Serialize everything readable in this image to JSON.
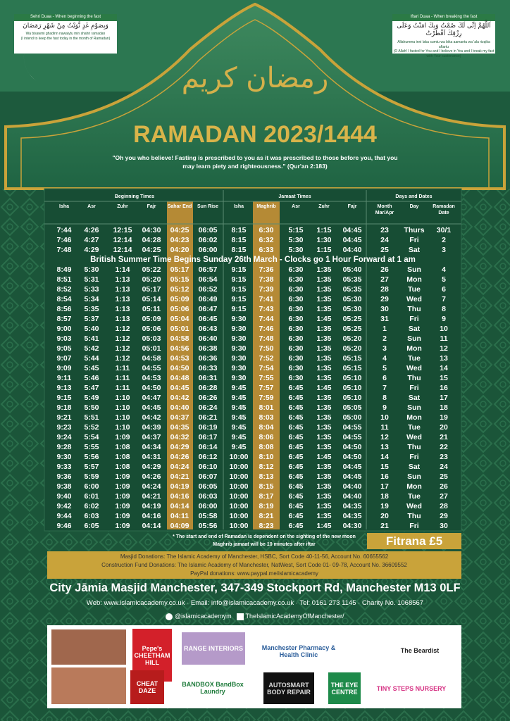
{
  "duas": [
    {
      "title": "Sehri Duaa - When beginning the fast",
      "arabic": "وَبِصَوْمِ غَدٍ نَّوَيْتُ مِنْ شَهْرِ رَمَضَانَ",
      "transliteration": "Wa bisawmi ghadinn nawaiytu min shahri ramadan",
      "translation": "(I intend to keep the fast today in the month of Ramadan)"
    },
    {
      "title": "Iftari Duaa - When breaking the fast",
      "arabic": "اَللَّهُمَّ اِنِّى لَكَ صُمْتُ وَبِكَ امَنْتُ وَعَلَى رِزْقِكَ اَفْطَرْتُ",
      "transliteration": "Allahumma inni laka sumtu wa bika aamantu wa 'ala rizqika aftartu",
      "translation": "(O Allah! I fasted for You and I believe in You and I break my fast with Your sustenance)"
    }
  ],
  "calligraphy": "رمضان كريم",
  "header": {
    "title": "RAMADAN 2023/1444",
    "quote": "\"Oh you who believe! Fasting is prescribed to you as it was prescribed to those before you, that you may learn piety and righteousness.\" (Qur'an 2:183)"
  },
  "table": {
    "groups": [
      "Beginning Times",
      "Jamaat Times",
      "Days and Dates"
    ],
    "columns": [
      "Isha",
      "Asr",
      "Zuhr",
      "Fajr",
      "Sahar End",
      "Sun Rise",
      "Isha",
      "Maghrib",
      "Asr",
      "Zuhr",
      "Fajr",
      "Month Mar/Apr",
      "Day",
      "Ramadan Date"
    ],
    "notice": "British Summer Time Begins Sunday 26th March - Clocks go 1 Hour Forward at 1 am",
    "rows": [
      [
        "7:44",
        "4:26",
        "12:15",
        "04:30",
        "04:25",
        "06:05",
        "8:15",
        "6:30",
        "5:15",
        "1:15",
        "04:45",
        "23",
        "Thurs",
        "30/1"
      ],
      [
        "7:46",
        "4:27",
        "12:14",
        "04:28",
        "04:23",
        "06:02",
        "8:15",
        "6:32",
        "5:30",
        "1:30",
        "04:45",
        "24",
        "Fri",
        "2"
      ],
      [
        "7:48",
        "4:29",
        "12:14",
        "04:25",
        "04:20",
        "06:00",
        "8:15",
        "6:33",
        "5:30",
        "1:15",
        "04:40",
        "25",
        "Sat",
        "3"
      ],
      [
        "8:49",
        "5:30",
        "1:14",
        "05:22",
        "05:17",
        "06:57",
        "9:15",
        "7:36",
        "6:30",
        "1:35",
        "05:40",
        "26",
        "Sun",
        "4"
      ],
      [
        "8:51",
        "5:31",
        "1:13",
        "05:20",
        "05:15",
        "06:54",
        "9:15",
        "7:38",
        "6:30",
        "1:35",
        "05:35",
        "27",
        "Mon",
        "5"
      ],
      [
        "8:52",
        "5:33",
        "1:13",
        "05:17",
        "05:12",
        "06:52",
        "9:15",
        "7:39",
        "6:30",
        "1:35",
        "05:35",
        "28",
        "Tue",
        "6"
      ],
      [
        "8:54",
        "5:34",
        "1:13",
        "05:14",
        "05:09",
        "06:49",
        "9:15",
        "7:41",
        "6:30",
        "1:35",
        "05:30",
        "29",
        "Wed",
        "7"
      ],
      [
        "8:56",
        "5:35",
        "1:13",
        "05:11",
        "05:06",
        "06:47",
        "9:15",
        "7:43",
        "6:30",
        "1:35",
        "05:30",
        "30",
        "Thu",
        "8"
      ],
      [
        "8:57",
        "5:37",
        "1:13",
        "05:09",
        "05:04",
        "06:45",
        "9:30",
        "7:44",
        "6:30",
        "1:45",
        "05:25",
        "31",
        "Fri",
        "9"
      ],
      [
        "9:00",
        "5:40",
        "1:12",
        "05:06",
        "05:01",
        "06:43",
        "9:30",
        "7:46",
        "6:30",
        "1:35",
        "05:25",
        "1",
        "Sat",
        "10"
      ],
      [
        "9:03",
        "5:41",
        "1:12",
        "05:03",
        "04:58",
        "06:40",
        "9:30",
        "7:48",
        "6:30",
        "1:35",
        "05:20",
        "2",
        "Sun",
        "11"
      ],
      [
        "9:05",
        "5:42",
        "1:12",
        "05:01",
        "04:56",
        "06:38",
        "9:30",
        "7:50",
        "6:30",
        "1:35",
        "05:20",
        "3",
        "Mon",
        "12"
      ],
      [
        "9:07",
        "5:44",
        "1:12",
        "04:58",
        "04:53",
        "06:36",
        "9:30",
        "7:52",
        "6:30",
        "1:35",
        "05:15",
        "4",
        "Tue",
        "13"
      ],
      [
        "9:09",
        "5:45",
        "1:11",
        "04:55",
        "04:50",
        "06:33",
        "9:30",
        "7:54",
        "6:30",
        "1:35",
        "05:15",
        "5",
        "Wed",
        "14"
      ],
      [
        "9:11",
        "5:46",
        "1:11",
        "04:53",
        "04:48",
        "06:31",
        "9:30",
        "7:55",
        "6:30",
        "1:35",
        "05:10",
        "6",
        "Thu",
        "15"
      ],
      [
        "9:13",
        "5:47",
        "1:11",
        "04:50",
        "04:45",
        "06:28",
        "9:45",
        "7:57",
        "6:45",
        "1:45",
        "05:10",
        "7",
        "Fri",
        "16"
      ],
      [
        "9:15",
        "5:49",
        "1:10",
        "04:47",
        "04:42",
        "06:26",
        "9:45",
        "7:59",
        "6:45",
        "1:35",
        "05:10",
        "8",
        "Sat",
        "17"
      ],
      [
        "9:18",
        "5:50",
        "1:10",
        "04:45",
        "04:40",
        "06:24",
        "9:45",
        "8:01",
        "6:45",
        "1:35",
        "05:05",
        "9",
        "Sun",
        "18"
      ],
      [
        "9:21",
        "5:51",
        "1:10",
        "04:42",
        "04:37",
        "06:21",
        "9:45",
        "8:03",
        "6:45",
        "1:35",
        "05:00",
        "10",
        "Mon",
        "19"
      ],
      [
        "9:23",
        "5:52",
        "1:10",
        "04:39",
        "04:35",
        "06:19",
        "9:45",
        "8:04",
        "6:45",
        "1:35",
        "04:55",
        "11",
        "Tue",
        "20"
      ],
      [
        "9:24",
        "5:54",
        "1:09",
        "04:37",
        "04:32",
        "06:17",
        "9:45",
        "8:06",
        "6:45",
        "1:35",
        "04:55",
        "12",
        "Wed",
        "21"
      ],
      [
        "9:28",
        "5:55",
        "1:08",
        "04:34",
        "04:29",
        "06:14",
        "9:45",
        "8:08",
        "6:45",
        "1:35",
        "04:50",
        "13",
        "Thu",
        "22"
      ],
      [
        "9:30",
        "5:56",
        "1:08",
        "04:31",
        "04:26",
        "06:12",
        "10:00",
        "8:10",
        "6:45",
        "1:45",
        "04:50",
        "14",
        "Fri",
        "23"
      ],
      [
        "9:33",
        "5:57",
        "1:08",
        "04:29",
        "04:24",
        "06:10",
        "10:00",
        "8:12",
        "6:45",
        "1:35",
        "04:45",
        "15",
        "Sat",
        "24"
      ],
      [
        "9:36",
        "5:59",
        "1:09",
        "04:26",
        "04:21",
        "06:07",
        "10:00",
        "8:13",
        "6:45",
        "1:35",
        "04:45",
        "16",
        "Sun",
        "25"
      ],
      [
        "9:38",
        "6:00",
        "1:09",
        "04:24",
        "04:19",
        "06:05",
        "10:00",
        "8:15",
        "6:45",
        "1:35",
        "04:40",
        "17",
        "Mon",
        "26"
      ],
      [
        "9:40",
        "6:01",
        "1:09",
        "04:21",
        "04:16",
        "06:03",
        "10:00",
        "8:17",
        "6:45",
        "1:35",
        "04:40",
        "18",
        "Tue",
        "27"
      ],
      [
        "9:42",
        "6:02",
        "1:09",
        "04:19",
        "04:14",
        "06:00",
        "10:00",
        "8:19",
        "6:45",
        "1:35",
        "04:35",
        "19",
        "Wed",
        "28"
      ],
      [
        "9:44",
        "6:03",
        "1:09",
        "04:16",
        "04:11",
        "05:58",
        "10:00",
        "8:21",
        "6:45",
        "1:35",
        "04:35",
        "20",
        "Thu",
        "29"
      ],
      [
        "9:46",
        "6:05",
        "1:09",
        "04:14",
        "04:09",
        "05:56",
        "10:00",
        "8:23",
        "6:45",
        "1:45",
        "04:30",
        "21",
        "Fri",
        "30"
      ]
    ]
  },
  "footer": {
    "notes": [
      "* The start and end of Ramadan is dependent on the sighting of the new moon",
      "Maghrib jamaat will be 10 minutes after iftar"
    ],
    "fitrana": "Fitrana £5",
    "donations": [
      "Masjid Donations: The Islamic Academy of Manchester, HSBC, Sort Code 40-11-56, Account No. 60655562",
      "Construction Fund Donations: The Islamic Academy of Manchester, NatWest, Sort Code 01- 09-78, Account No. 36609552",
      "PayPal donations: www.paypal.me/islamicacademy"
    ],
    "address": "City Jāmia Masjid Manchester, 347-349 Stockport Rd, Manchester M13 0LF",
    "contact": "Web: www.islamicacademy.co.uk · Email: info@islamicacademy.co.uk · Tel: 0161 273 1145 · Charity No. 1068567",
    "social": [
      "@islamicacademym",
      "TheIslamicAcademyOfManchester/"
    ]
  },
  "sponsors": [
    "Pepe's CHEETHAM HILL",
    "RANGE INTERIORS",
    "Manchester Pharmacy & Health Clinic",
    "The Beardist",
    "CHEAT DAZE",
    "BANDBOX BandBox Laundry",
    "AUTOSMART BODY REPAIR",
    "THE EYE CENTRE",
    "TINY STEPS NURSERY"
  ]
}
